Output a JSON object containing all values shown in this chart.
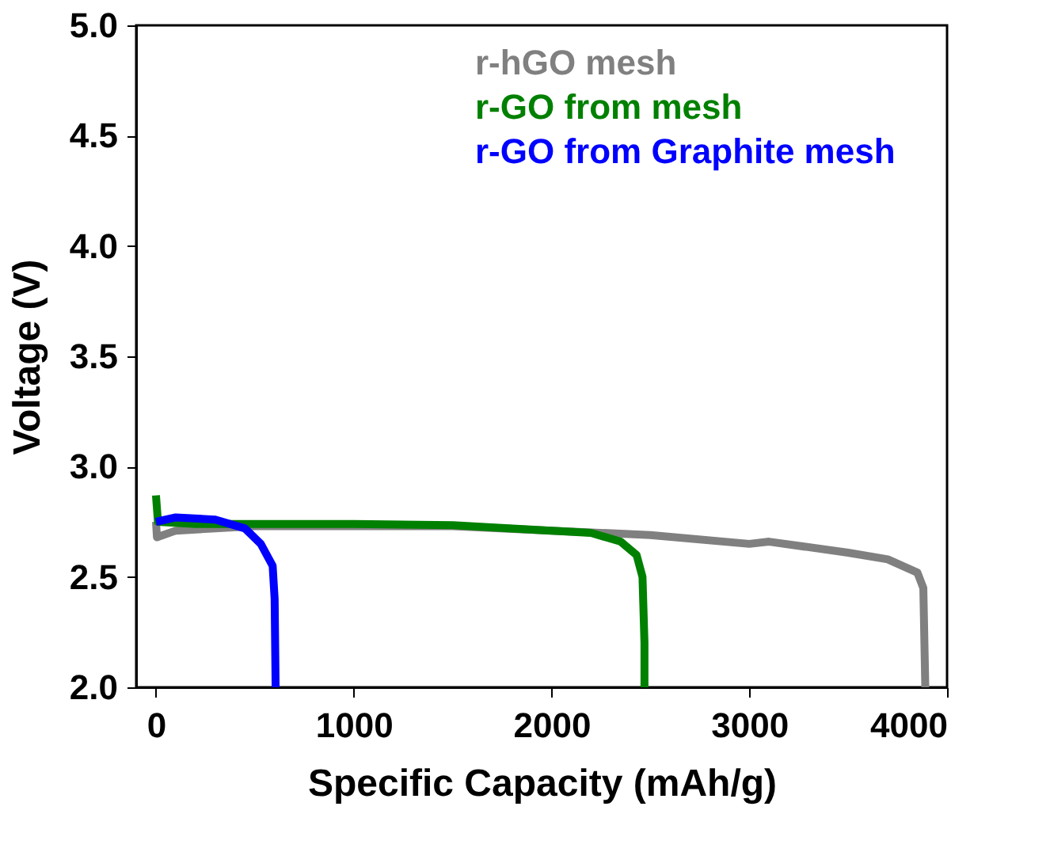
{
  "chart_data": {
    "type": "line",
    "xlabel": "Specific Capacity (mAh/g)",
    "ylabel": "Voltage (V)",
    "xlim": [
      -100,
      4000
    ],
    "ylim": [
      2.0,
      5.0
    ],
    "xticks": [
      0,
      1000,
      2000,
      3000,
      4000
    ],
    "yticks": [
      {
        "value": 2.0,
        "label": "2.0"
      },
      2.5,
      {
        "value": 3.0,
        "label": "3.0"
      },
      3.5,
      {
        "value": 4.0,
        "label": "4.0"
      },
      4.5,
      {
        "value": 5.0,
        "label": "5.0"
      }
    ],
    "grid": false,
    "legend": "top right",
    "line_style": "solid",
    "marker": "none",
    "series": [
      {
        "name": "r-hGO mesh",
        "color": "#808080",
        "x": [
          0,
          5,
          100,
          500,
          1500,
          2000,
          2500,
          3000,
          3100,
          3500,
          3700,
          3850,
          3880,
          3890
        ],
        "values": [
          2.75,
          2.68,
          2.71,
          2.73,
          2.73,
          2.71,
          2.69,
          2.65,
          2.66,
          2.61,
          2.58,
          2.52,
          2.45,
          2.0
        ]
      },
      {
        "name": "r-GO from mesh",
        "color": "#008000",
        "x": [
          0,
          10,
          200,
          1000,
          1500,
          2000,
          2200,
          2350,
          2430,
          2460,
          2470,
          2470
        ],
        "values": [
          2.87,
          2.75,
          2.74,
          2.74,
          2.735,
          2.71,
          2.7,
          2.66,
          2.6,
          2.5,
          2.2,
          2.0
        ]
      },
      {
        "name": "r-GO from Graphite mesh",
        "color": "#0000ff",
        "x": [
          0,
          100,
          300,
          450,
          530,
          590,
          600,
          605
        ],
        "values": [
          2.75,
          2.77,
          2.76,
          2.72,
          2.65,
          2.55,
          2.4,
          2.0
        ]
      }
    ]
  }
}
